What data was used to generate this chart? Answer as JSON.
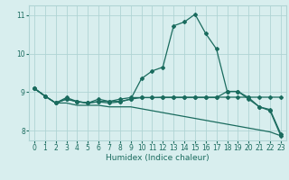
{
  "xlabel": "Humidex (Indice chaleur)",
  "x": [
    0,
    1,
    2,
    3,
    4,
    5,
    6,
    7,
    8,
    9,
    10,
    11,
    12,
    13,
    14,
    15,
    16,
    17,
    18,
    19,
    20,
    21,
    22,
    23
  ],
  "line1": [
    9.1,
    8.9,
    8.72,
    8.82,
    8.75,
    8.72,
    8.75,
    8.72,
    8.75,
    8.82,
    9.35,
    9.55,
    9.65,
    10.72,
    10.82,
    11.02,
    10.52,
    10.12,
    9.02,
    9.02,
    8.82,
    8.62,
    8.55,
    7.92
  ],
  "line2": [
    9.1,
    8.9,
    8.72,
    8.82,
    8.76,
    8.72,
    8.76,
    8.76,
    8.76,
    8.82,
    8.86,
    8.86,
    8.87,
    8.87,
    8.87,
    8.87,
    8.87,
    8.87,
    8.87,
    8.87,
    8.87,
    8.87,
    8.87,
    8.87
  ],
  "line3": [
    9.1,
    8.9,
    8.72,
    8.72,
    8.66,
    8.66,
    8.66,
    8.62,
    8.62,
    8.62,
    8.57,
    8.52,
    8.47,
    8.42,
    8.37,
    8.32,
    8.27,
    8.22,
    8.17,
    8.12,
    8.07,
    8.02,
    7.97,
    7.87
  ],
  "line4": [
    9.1,
    8.9,
    8.72,
    8.86,
    8.76,
    8.72,
    8.82,
    8.76,
    8.82,
    8.86,
    8.86,
    8.86,
    8.86,
    8.86,
    8.86,
    8.86,
    8.86,
    8.86,
    9.02,
    9.02,
    8.86,
    8.62,
    8.52,
    7.87
  ],
  "line_color": "#1a6b5e",
  "bg_color": "#d8eeee",
  "grid_color": "#b0d4d4",
  "ylim": [
    7.75,
    11.25
  ],
  "xlim": [
    -0.5,
    23.5
  ],
  "yticks": [
    8,
    9,
    10,
    11
  ],
  "xticks": [
    0,
    1,
    2,
    3,
    4,
    5,
    6,
    7,
    8,
    9,
    10,
    11,
    12,
    13,
    14,
    15,
    16,
    17,
    18,
    19,
    20,
    21,
    22,
    23
  ]
}
